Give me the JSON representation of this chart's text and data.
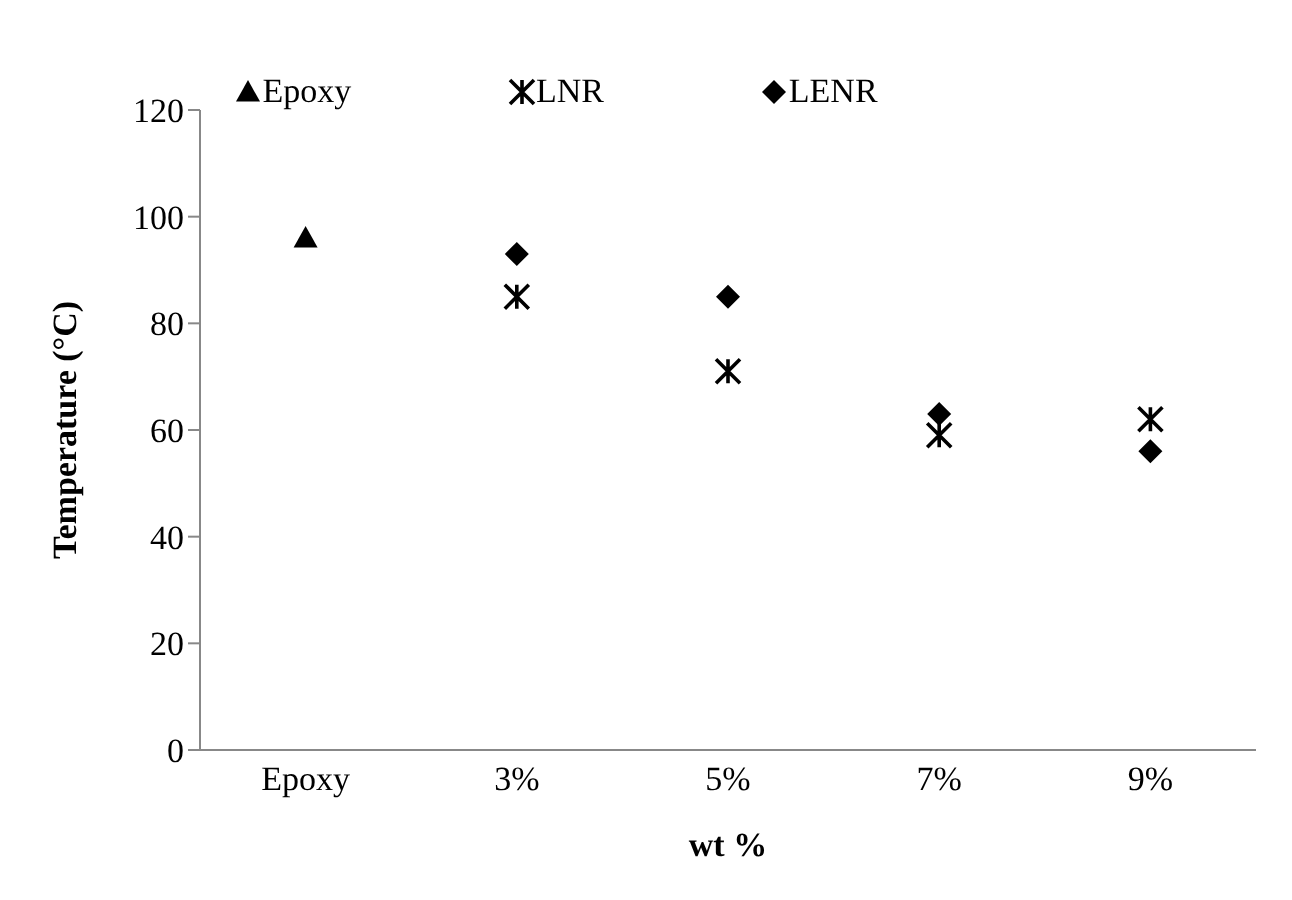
{
  "chart_data": {
    "type": "scatter",
    "xlabel": "wt %",
    "ylabel": "Temperature (°C)",
    "categories": [
      "Epoxy",
      "3%",
      "5%",
      "7%",
      "9%"
    ],
    "series": [
      {
        "name": "Epoxy",
        "color": "#000000",
        "marker": "triangle",
        "values": [
          96,
          null,
          null,
          null,
          null
        ]
      },
      {
        "name": "LNR",
        "color": "#000000",
        "marker": "cross",
        "values": [
          null,
          85,
          71,
          59,
          62
        ]
      },
      {
        "name": "LENR",
        "color": "#000000",
        "marker": "diamond",
        "values": [
          null,
          93,
          85,
          63,
          56
        ]
      }
    ],
    "ylim": [
      0,
      120
    ],
    "yticks": [
      0,
      20,
      40,
      60,
      80,
      100,
      120
    ],
    "grid": false,
    "legend": "top"
  }
}
